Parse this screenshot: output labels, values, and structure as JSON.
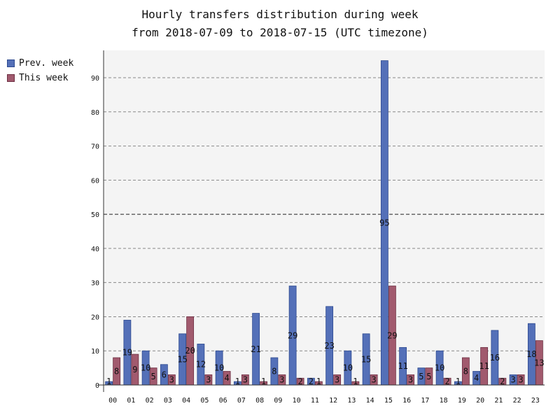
{
  "chart_data": {
    "type": "bar",
    "title_line1": "Hourly transfers distribution during week",
    "title_line2": "from 2018-07-09 to 2018-07-15 (UTC timezone)",
    "categories": [
      "00",
      "01",
      "02",
      "03",
      "04",
      "05",
      "06",
      "07",
      "08",
      "09",
      "10",
      "11",
      "12",
      "13",
      "14",
      "15",
      "16",
      "17",
      "18",
      "19",
      "20",
      "21",
      "22",
      "23"
    ],
    "series": [
      {
        "name": "Prev. week",
        "color": "#5470b8",
        "values": [
          1,
          19,
          10,
          6,
          15,
          12,
          10,
          1,
          21,
          8,
          29,
          2,
          23,
          10,
          15,
          95,
          11,
          5,
          10,
          1,
          4,
          16,
          3,
          18
        ]
      },
      {
        "name": "This week",
        "color": "#a15a6e",
        "values": [
          8,
          9,
          5,
          3,
          20,
          3,
          4,
          3,
          1,
          3,
          2,
          1,
          3,
          1,
          3,
          29,
          3,
          5,
          2,
          8,
          11,
          2,
          3,
          13
        ]
      }
    ],
    "y_ticks": [
      0,
      10,
      20,
      30,
      40,
      50,
      60,
      70,
      80,
      90
    ],
    "ylim": [
      0,
      98
    ],
    "grid": true,
    "legend_position": "top-left"
  }
}
